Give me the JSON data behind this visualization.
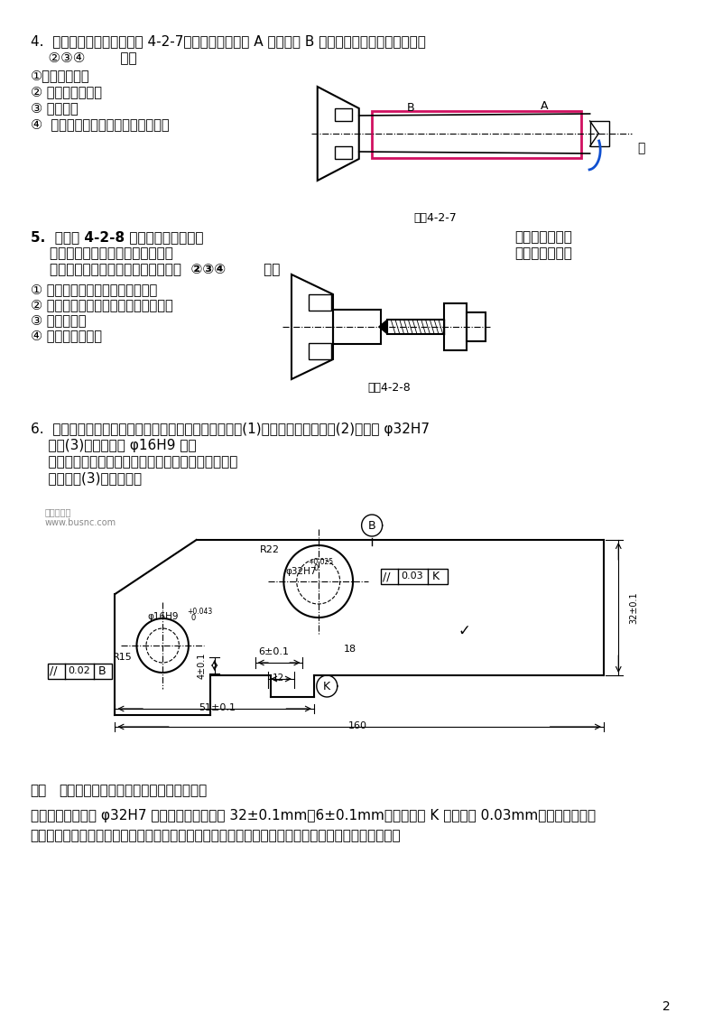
{
  "background_color": "#ffffff",
  "page_number": "2",
  "q4_title": "4.  在车床上车削光轴（习图 4-2-7），车后发现工件 A 处直径比 B 处直径大，其可能的原因有（",
  "q4_answer": "    ②③④        ）。",
  "q4_items": [
    "①刀架刚度不足",
    "② 尾顶尖刚度不足",
    "③ 导轨扭曲",
    "④  车床纵向导轨与主轴回转轴线不平"
  ],
  "q4_right_text": "行",
  "q4_fig_label": "习图4-2-7",
  "q5_title1": "5.  如习图 4-2-8 所示，零件安装在车",
  "q5_title2": "    孔（钻头安装在尾座上）。加工后",
  "q5_title3": "    偏大。造成孔径偏大的可能原因有（  ②③④        ）。",
  "q5_right1": "床三爪卡盘上钻",
  "q5_right2": "测量，发现孔径",
  "q5_fig_label2": "习图4-2-8",
  "q5_items": [
    "① 车床导轨与主轴回转轴线不平行",
    "② 尾座套筒轴线与主轴回转轴线不同轴",
    "③ 刀具热变形",
    "④ 钻头刃磨不对称"
  ],
  "q6_title": "6.  图所示为车床进刀轴架零件，若已知其工艺过程为：(1)粗精刨底面和凸台；(2)粗精镗 φ32H7",
  "q6_line2": "    孔；(3)钻、扩、铰 φ16H9 孔。",
  "q6_line3": "    试选择各工序的定位基准并确定各限制几个自由度。",
  "q6_line4": "    分析工序(3)的定位基准",
  "solution_bold": "解：",
  "solution_line1_rest": "第一道工序按划线找正，刨底面和凸台。",
  "solution_line2": "第二道工序粗精镗 φ32H7 孔。加工要求为尺寸 32±0.1mm、6±0.1mm及凸台侧面 K 的平行度 0.03mm。根据基准重合",
  "solution_line3": "的原则选择底面和凸台为定位基准，底面限制三个自由度，凸台限制两个自由度，无基准不重合误差。"
}
